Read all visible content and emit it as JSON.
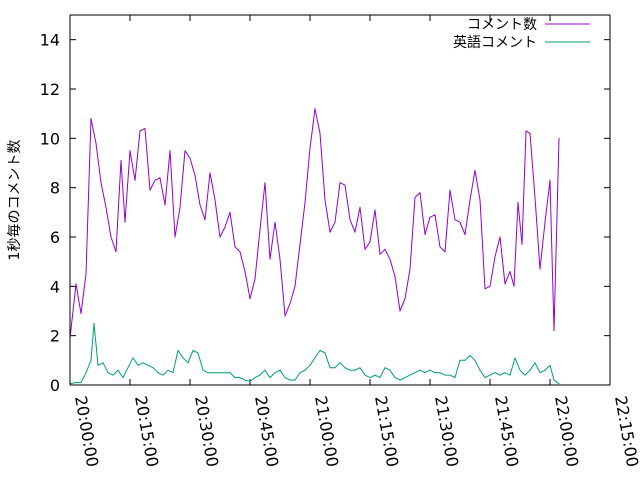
{
  "chart_data": {
    "type": "line",
    "ylabel": "1秒毎のコメント数",
    "ylim": [
      0,
      15
    ],
    "y_ticks": [
      0,
      2,
      4,
      6,
      8,
      10,
      12,
      14
    ],
    "x_range": [
      "20:00:00",
      "22:15:00"
    ],
    "x_ticks": [
      "20:00:00",
      "20:15:00",
      "20:30:00",
      "20:45:00",
      "21:00:00",
      "21:15:00",
      "21:30:00",
      "21:45:00",
      "22:00:00",
      "22:15:00"
    ],
    "grid": false,
    "legend_position": "top-right",
    "series": [
      {
        "name": "コメント数",
        "color": "#9400d3",
        "points": [
          [
            "20:00:00",
            1.9
          ],
          [
            "20:01:30",
            4.1
          ],
          [
            "20:02:45",
            2.9
          ],
          [
            "20:04:00",
            4.5
          ],
          [
            "20:05:15",
            10.8
          ],
          [
            "20:06:30",
            9.8
          ],
          [
            "20:07:45",
            8.2
          ],
          [
            "20:09:00",
            7.2
          ],
          [
            "20:10:15",
            6.0
          ],
          [
            "20:11:30",
            5.4
          ],
          [
            "20:12:45",
            9.1
          ],
          [
            "20:13:45",
            6.6
          ],
          [
            "20:15:00",
            9.5
          ],
          [
            "20:16:15",
            8.3
          ],
          [
            "20:17:30",
            10.3
          ],
          [
            "20:18:45",
            10.4
          ],
          [
            "20:20:00",
            7.9
          ],
          [
            "20:21:15",
            8.3
          ],
          [
            "20:22:30",
            8.4
          ],
          [
            "20:23:45",
            7.3
          ],
          [
            "20:25:00",
            9.5
          ],
          [
            "20:26:15",
            6.0
          ],
          [
            "20:27:30",
            7.2
          ],
          [
            "20:28:45",
            9.5
          ],
          [
            "20:30:00",
            9.2
          ],
          [
            "20:31:15",
            8.5
          ],
          [
            "20:32:30",
            7.3
          ],
          [
            "20:33:45",
            6.7
          ],
          [
            "20:35:00",
            8.6
          ],
          [
            "20:36:15",
            7.5
          ],
          [
            "20:37:30",
            6.0
          ],
          [
            "20:38:45",
            6.4
          ],
          [
            "20:40:00",
            7.0
          ],
          [
            "20:41:15",
            5.6
          ],
          [
            "20:42:30",
            5.4
          ],
          [
            "20:43:45",
            4.6
          ],
          [
            "20:45:00",
            3.5
          ],
          [
            "20:46:15",
            4.3
          ],
          [
            "20:47:30",
            6.3
          ],
          [
            "20:48:45",
            8.2
          ],
          [
            "20:50:00",
            5.1
          ],
          [
            "20:51:15",
            6.6
          ],
          [
            "20:52:30",
            5.1
          ],
          [
            "20:53:45",
            2.8
          ],
          [
            "20:55:00",
            3.3
          ],
          [
            "20:56:15",
            4.0
          ],
          [
            "20:57:30",
            5.7
          ],
          [
            "20:58:45",
            7.4
          ],
          [
            "21:00:00",
            9.6
          ],
          [
            "21:01:15",
            11.2
          ],
          [
            "21:02:30",
            10.2
          ],
          [
            "21:03:45",
            7.5
          ],
          [
            "21:05:00",
            6.2
          ],
          [
            "21:06:15",
            6.6
          ],
          [
            "21:07:30",
            8.2
          ],
          [
            "21:08:45",
            8.1
          ],
          [
            "21:10:00",
            6.7
          ],
          [
            "21:11:15",
            6.2
          ],
          [
            "21:12:30",
            7.2
          ],
          [
            "21:13:45",
            5.5
          ],
          [
            "21:15:00",
            5.8
          ],
          [
            "21:16:15",
            7.1
          ],
          [
            "21:17:30",
            5.3
          ],
          [
            "21:18:45",
            5.5
          ],
          [
            "21:20:00",
            5.1
          ],
          [
            "21:21:15",
            4.4
          ],
          [
            "21:22:30",
            3.0
          ],
          [
            "21:23:45",
            3.5
          ],
          [
            "21:25:00",
            4.7
          ],
          [
            "21:26:15",
            7.6
          ],
          [
            "21:27:30",
            7.8
          ],
          [
            "21:28:45",
            6.1
          ],
          [
            "21:30:00",
            6.8
          ],
          [
            "21:31:15",
            6.9
          ],
          [
            "21:32:30",
            5.6
          ],
          [
            "21:33:45",
            5.4
          ],
          [
            "21:35:00",
            7.9
          ],
          [
            "21:36:15",
            6.7
          ],
          [
            "21:37:30",
            6.6
          ],
          [
            "21:38:45",
            6.1
          ],
          [
            "21:40:00",
            7.5
          ],
          [
            "21:41:15",
            8.7
          ],
          [
            "21:42:30",
            7.5
          ],
          [
            "21:43:45",
            3.9
          ],
          [
            "21:45:00",
            4.0
          ],
          [
            "21:46:15",
            5.2
          ],
          [
            "21:47:30",
            6.0
          ],
          [
            "21:48:45",
            4.1
          ],
          [
            "21:50:00",
            4.6
          ],
          [
            "21:51:00",
            4.0
          ],
          [
            "21:52:00",
            7.4
          ],
          [
            "21:53:00",
            5.7
          ],
          [
            "21:54:00",
            10.3
          ],
          [
            "21:55:00",
            10.2
          ],
          [
            "21:56:15",
            7.6
          ],
          [
            "21:57:30",
            4.7
          ],
          [
            "21:58:45",
            6.6
          ],
          [
            "22:00:00",
            8.3
          ],
          [
            "22:01:00",
            2.2
          ],
          [
            "22:02:15",
            10.0
          ]
        ]
      },
      {
        "name": "英語コメント",
        "color": "#009e73",
        "points": [
          [
            "20:00:00",
            0.05
          ],
          [
            "20:01:30",
            0.1
          ],
          [
            "20:02:45",
            0.1
          ],
          [
            "20:04:00",
            0.5
          ],
          [
            "20:05:15",
            1.0
          ],
          [
            "20:06:00",
            2.5
          ],
          [
            "20:07:00",
            0.8
          ],
          [
            "20:08:15",
            0.9
          ],
          [
            "20:09:30",
            0.5
          ],
          [
            "20:10:45",
            0.4
          ],
          [
            "20:12:00",
            0.6
          ],
          [
            "20:13:15",
            0.3
          ],
          [
            "20:14:30",
            0.7
          ],
          [
            "20:15:45",
            1.1
          ],
          [
            "20:17:00",
            0.8
          ],
          [
            "20:18:15",
            0.9
          ],
          [
            "20:19:30",
            0.8
          ],
          [
            "20:20:45",
            0.7
          ],
          [
            "20:22:00",
            0.5
          ],
          [
            "20:23:15",
            0.4
          ],
          [
            "20:24:30",
            0.6
          ],
          [
            "20:25:45",
            0.5
          ],
          [
            "20:27:00",
            1.4
          ],
          [
            "20:28:15",
            1.1
          ],
          [
            "20:29:30",
            0.9
          ],
          [
            "20:30:45",
            1.4
          ],
          [
            "20:32:00",
            1.3
          ],
          [
            "20:33:15",
            0.6
          ],
          [
            "20:34:30",
            0.5
          ],
          [
            "20:36:00",
            0.5
          ],
          [
            "20:38:00",
            0.5
          ],
          [
            "20:40:00",
            0.5
          ],
          [
            "20:41:15",
            0.3
          ],
          [
            "20:42:30",
            0.3
          ],
          [
            "20:43:45",
            0.2
          ],
          [
            "20:45:00",
            0.15
          ],
          [
            "20:46:15",
            0.3
          ],
          [
            "20:47:30",
            0.4
          ],
          [
            "20:48:45",
            0.6
          ],
          [
            "20:50:00",
            0.3
          ],
          [
            "20:51:15",
            0.5
          ],
          [
            "20:52:30",
            0.6
          ],
          [
            "20:53:45",
            0.3
          ],
          [
            "20:55:00",
            0.2
          ],
          [
            "20:56:15",
            0.2
          ],
          [
            "20:57:30",
            0.5
          ],
          [
            "20:58:45",
            0.6
          ],
          [
            "21:00:00",
            0.8
          ],
          [
            "21:01:15",
            1.1
          ],
          [
            "21:02:30",
            1.4
          ],
          [
            "21:03:45",
            1.3
          ],
          [
            "21:05:00",
            0.7
          ],
          [
            "21:06:15",
            0.7
          ],
          [
            "21:07:30",
            0.9
          ],
          [
            "21:08:45",
            0.7
          ],
          [
            "21:10:00",
            0.6
          ],
          [
            "21:11:15",
            0.6
          ],
          [
            "21:12:30",
            0.7
          ],
          [
            "21:13:45",
            0.4
          ],
          [
            "21:15:00",
            0.3
          ],
          [
            "21:16:15",
            0.4
          ],
          [
            "21:17:30",
            0.3
          ],
          [
            "21:18:45",
            0.7
          ],
          [
            "21:20:00",
            0.6
          ],
          [
            "21:21:15",
            0.3
          ],
          [
            "21:22:30",
            0.2
          ],
          [
            "21:23:45",
            0.3
          ],
          [
            "21:25:00",
            0.4
          ],
          [
            "21:26:15",
            0.5
          ],
          [
            "21:27:30",
            0.6
          ],
          [
            "21:28:45",
            0.5
          ],
          [
            "21:30:00",
            0.6
          ],
          [
            "21:31:15",
            0.5
          ],
          [
            "21:32:30",
            0.5
          ],
          [
            "21:33:45",
            0.4
          ],
          [
            "21:35:00",
            0.4
          ],
          [
            "21:36:15",
            0.3
          ],
          [
            "21:37:30",
            1.0
          ],
          [
            "21:38:45",
            1.0
          ],
          [
            "21:40:00",
            1.2
          ],
          [
            "21:41:15",
            1.0
          ],
          [
            "21:42:30",
            0.6
          ],
          [
            "21:43:45",
            0.3
          ],
          [
            "21:45:00",
            0.4
          ],
          [
            "21:46:15",
            0.5
          ],
          [
            "21:47:30",
            0.4
          ],
          [
            "21:48:45",
            0.5
          ],
          [
            "21:50:00",
            0.4
          ],
          [
            "21:51:15",
            1.1
          ],
          [
            "21:52:30",
            0.6
          ],
          [
            "21:53:45",
            0.4
          ],
          [
            "21:55:00",
            0.6
          ],
          [
            "21:56:15",
            0.9
          ],
          [
            "21:57:30",
            0.5
          ],
          [
            "21:58:45",
            0.6
          ],
          [
            "22:00:00",
            0.8
          ],
          [
            "22:01:00",
            0.2
          ],
          [
            "22:02:15",
            0.05
          ]
        ]
      }
    ]
  }
}
